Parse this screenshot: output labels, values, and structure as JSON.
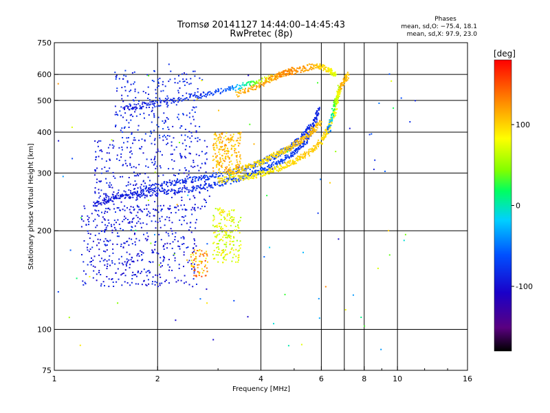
{
  "chart_data": {
    "type": "scatter",
    "title": "Tromsø 20141127 14:44:00–14:45:43",
    "subtitle": "RwPretec (8p)",
    "xlabel": "Frequency [MHz]",
    "ylabel": "Stationary phase Virtual Height [km]",
    "x_scale": "log",
    "y_scale": "log",
    "xlim": [
      1,
      16
    ],
    "ylim": [
      75,
      750
    ],
    "x_ticks": [
      1,
      2,
      4,
      6,
      8,
      10,
      16
    ],
    "x_tick_labels": [
      "1",
      "2",
      "4",
      "6",
      "8",
      "10",
      "16"
    ],
    "x_gridlines": [
      2,
      4,
      6,
      7,
      8,
      10
    ],
    "y_ticks": [
      75,
      100,
      200,
      300,
      400,
      500,
      600,
      750
    ],
    "y_tick_labels": [
      "75",
      "100",
      "200",
      "300",
      "400",
      "500",
      "600",
      "750"
    ],
    "y_gridlines": [
      100,
      200,
      300,
      400,
      500,
      600
    ],
    "grid": true,
    "stats": {
      "heading": "Phases",
      "line_o": "mean, sd,O: −75.4, 18.1",
      "line_x": "mean, sd,X:  97.9, 23.0"
    },
    "colorbar": {
      "unit": "[deg]",
      "range": [
        -180,
        180
      ],
      "ticks": [
        100,
        0,
        -100
      ],
      "tick_labels": [
        "100",
        "0",
        "-100"
      ],
      "colormap": "rainbow (black → purple → blue → cyan → green → yellow → red)"
    },
    "traces": [
      {
        "name_hint": "O-mode F2 low trace",
        "x": [
          1.3,
          1.6,
          2.0,
          2.5,
          3.0,
          3.5,
          4.0,
          4.5,
          5.0,
          5.4,
          5.7,
          5.9
        ],
        "y": [
          240,
          255,
          262,
          268,
          278,
          290,
          305,
          322,
          345,
          375,
          420,
          470
        ],
        "phase": [
          -100,
          -95,
          -90,
          -85,
          -78,
          -72,
          -70,
          -72,
          -75,
          -80,
          -85,
          -90
        ]
      },
      {
        "name_hint": "O-mode F2 trace",
        "x": [
          1.4,
          1.8,
          2.2,
          2.7,
          3.2,
          3.8,
          4.3,
          4.8,
          5.2,
          5.6
        ],
        "y": [
          250,
          268,
          280,
          290,
          300,
          315,
          335,
          355,
          380,
          420
        ],
        "phase": [
          -95,
          -88,
          -82,
          -75,
          -70,
          -68,
          -70,
          -72,
          -78,
          -85
        ]
      },
      {
        "name_hint": "X-mode F2 trace",
        "x": [
          3.0,
          3.5,
          4.0,
          4.5,
          5.0,
          5.5,
          6.0,
          6.3,
          6.6,
          6.8
        ],
        "y": [
          285,
          290,
          298,
          310,
          325,
          345,
          375,
          410,
          470,
          560
        ],
        "phase": [
          95,
          90,
          88,
          92,
          98,
          105,
          100,
          95,
          80,
          60
        ]
      },
      {
        "name_hint": "X-mode second trace",
        "x": [
          3.2,
          3.6,
          4.0,
          4.4,
          4.8,
          5.2,
          5.6,
          6.0
        ],
        "y": [
          300,
          312,
          325,
          340,
          355,
          375,
          400,
          430
        ],
        "phase": [
          105,
          100,
          95,
          98,
          102,
          108,
          110,
          105
        ]
      },
      {
        "name_hint": "second hop trace",
        "x": [
          1.6,
          2.0,
          2.6,
          3.2,
          3.8,
          4.4,
          5.0
        ],
        "y": [
          470,
          490,
          515,
          540,
          565,
          590,
          620
        ],
        "phase": [
          -100,
          -90,
          -80,
          -60,
          30,
          110,
          130
        ]
      },
      {
        "name_hint": "second hop X trace",
        "x": [
          3.4,
          4.0,
          4.6,
          5.2,
          5.8,
          6.3,
          6.6
        ],
        "y": [
          520,
          560,
          600,
          620,
          640,
          620,
          600
        ],
        "phase": [
          115,
          120,
          130,
          125,
          110,
          90,
          70
        ]
      },
      {
        "name_hint": "X-mode high cusp",
        "x": [
          6.3,
          6.6,
          6.9,
          7.2
        ],
        "y": [
          400,
          500,
          560,
          600
        ],
        "phase": [
          -60,
          50,
          120,
          100
        ]
      }
    ],
    "clusters": [
      {
        "name_hint": "spread F low",
        "x_range": [
          1.2,
          2.6
        ],
        "y_range": [
          135,
          240
        ],
        "count": 460,
        "phase_range": [
          -110,
          -80
        ]
      },
      {
        "name_hint": "spread F mid",
        "x_range": [
          1.3,
          2.8
        ],
        "y_range": [
          230,
          380
        ],
        "count": 320,
        "phase_range": [
          -105,
          -80
        ]
      },
      {
        "name_hint": "upper spread",
        "x_range": [
          1.5,
          2.7
        ],
        "y_range": [
          380,
          620
        ],
        "count": 240,
        "phase_range": [
          -100,
          -70
        ]
      },
      {
        "name_hint": "X-mode green-yellow blob",
        "x_range": [
          2.9,
          3.5
        ],
        "y_range": [
          160,
          235
        ],
        "count": 180,
        "phase_range": [
          50,
          100
        ]
      },
      {
        "name_hint": "X-mode orange patch",
        "x_range": [
          2.5,
          2.8
        ],
        "y_range": [
          145,
          175
        ],
        "count": 70,
        "phase_range": [
          70,
          160
        ]
      },
      {
        "name_hint": "X-mode yellow-orange F2 blob",
        "x_range": [
          2.9,
          3.5
        ],
        "y_range": [
          300,
          400
        ],
        "count": 200,
        "phase_range": [
          90,
          130
        ]
      },
      {
        "name_hint": "sparse scatter",
        "x_range": [
          1.0,
          12
        ],
        "y_range": [
          85,
          650
        ],
        "count": 90,
        "phase_range": [
          -110,
          140
        ]
      }
    ]
  }
}
